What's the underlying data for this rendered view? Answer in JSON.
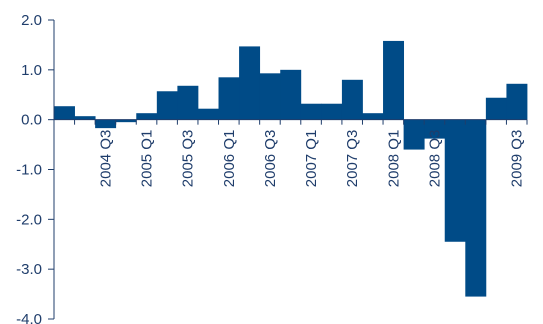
{
  "chart_data": {
    "type": "bar",
    "title": "",
    "xlabel": "",
    "ylabel": "",
    "ylim": [
      -4.0,
      2.0
    ],
    "y_ticks": [
      2.0,
      1.0,
      0.0,
      -1.0,
      -2.0,
      -3.0,
      -4.0
    ],
    "y_tick_labels": [
      "2.0",
      "1.0",
      "0.0",
      "-1.0",
      "-2.0",
      "-3.0",
      "-4.0"
    ],
    "categories": [
      "2004 Q1",
      "2004 Q2",
      "2004 Q3",
      "2004 Q4",
      "2005 Q1",
      "2005 Q2",
      "2005 Q3",
      "2005 Q4",
      "2006 Q1",
      "2006 Q2",
      "2006 Q3",
      "2006 Q4",
      "2007 Q1",
      "2007 Q2",
      "2007 Q3",
      "2007 Q4",
      "2008 Q1",
      "2008 Q2",
      "2008 Q3",
      "2008 Q4",
      "2009 Q1",
      "2009 Q2",
      "2009 Q3"
    ],
    "values": [
      0.27,
      0.07,
      -0.17,
      -0.05,
      0.13,
      0.57,
      0.68,
      0.22,
      0.85,
      1.47,
      0.93,
      1.0,
      0.32,
      0.32,
      0.8,
      0.13,
      1.58,
      -0.6,
      -0.38,
      -2.45,
      -3.55,
      0.44,
      0.72
    ],
    "shown_category_labels": [
      "2004 Q3",
      "2005 Q1",
      "2005 Q3",
      "2006 Q1",
      "2006 Q3",
      "2007 Q1",
      "2007 Q3",
      "2008 Q1",
      "2008 Q3",
      "2009 Q3"
    ],
    "bar_color": "#004b87",
    "axis_color": "#1f3d6b",
    "label_color": "#1f3d6b",
    "grid": false,
    "legend": "none"
  }
}
